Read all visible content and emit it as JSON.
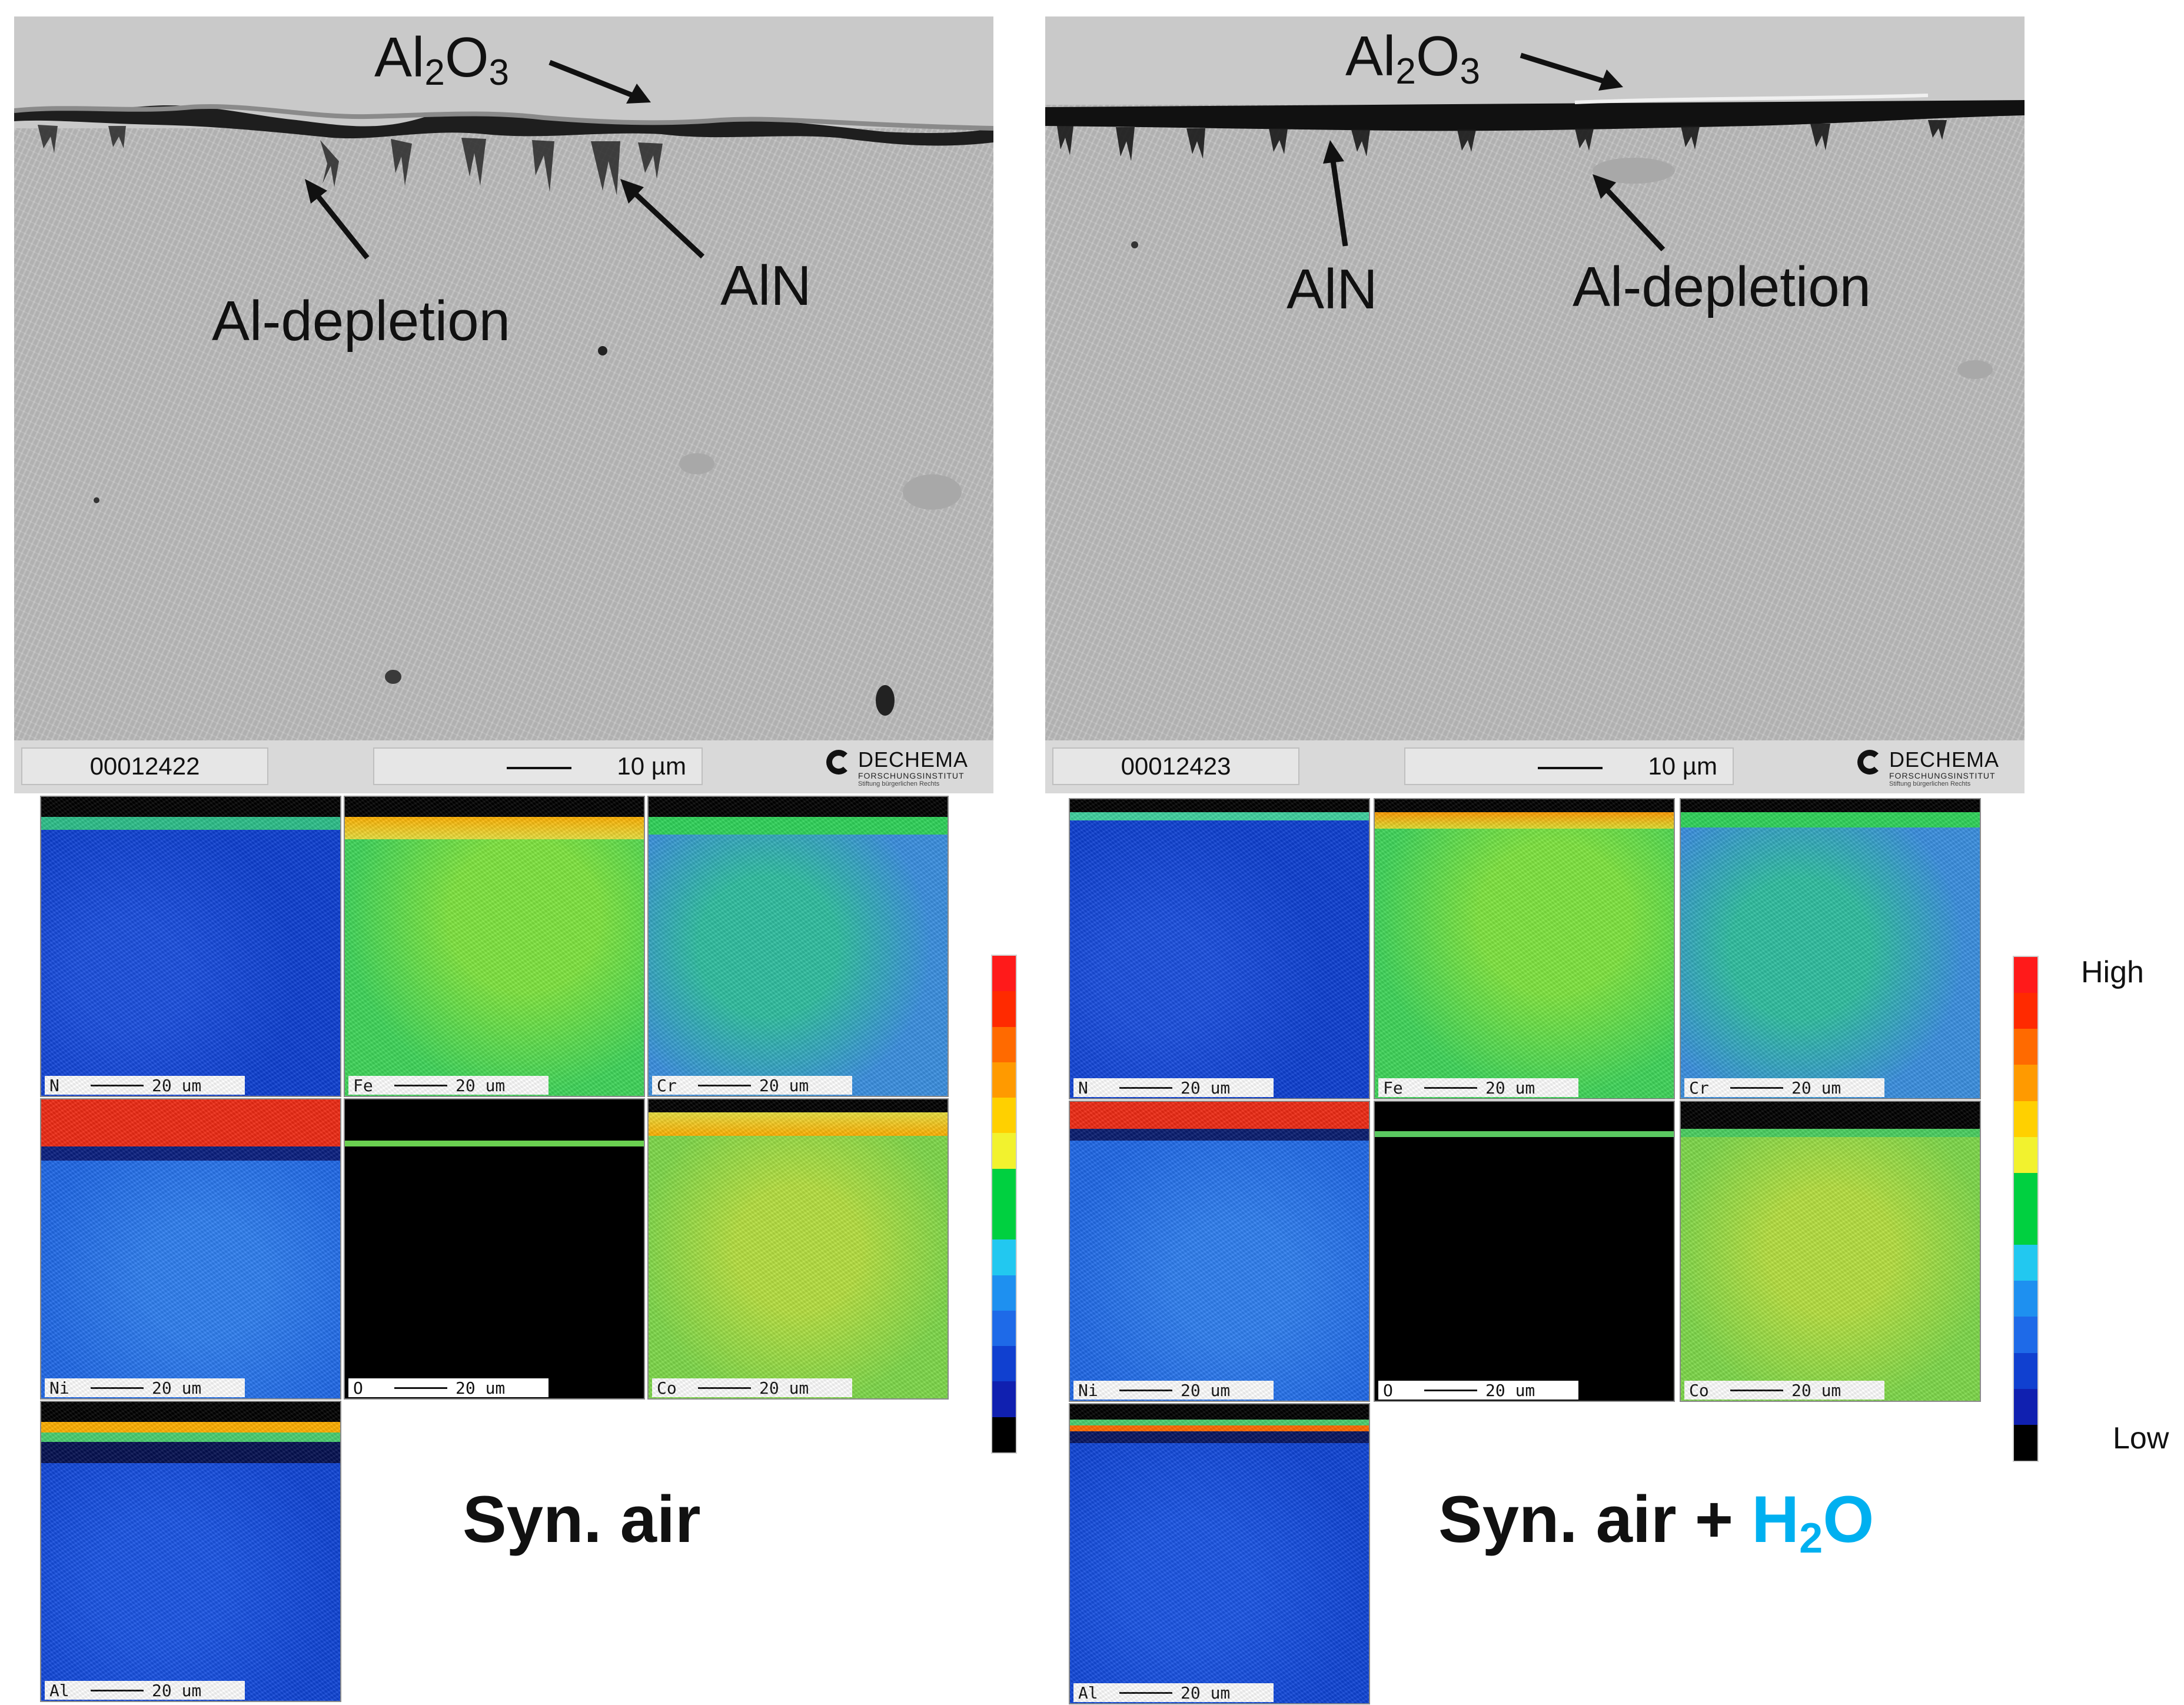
{
  "left_panel": {
    "sem": {
      "image_id": "00012422",
      "scale_label": "10 µm",
      "logo_name": "DECHEMA",
      "logo_sub": "FORSCHUNGSINSTITUT",
      "logo_sub2": "Stiftung bürgerlichen Rechts",
      "annotations": {
        "oxide_base": "Al",
        "oxide_sub1": "2",
        "oxide_mid": "O",
        "oxide_sub2": "3",
        "nitride": "AlN",
        "depletion": "Al-depletion"
      }
    },
    "maps": [
      {
        "element": "N",
        "scale": "20 um"
      },
      {
        "element": "Fe",
        "scale": "20 um"
      },
      {
        "element": "Cr",
        "scale": "20 um"
      },
      {
        "element": "Ni",
        "scale": "20 um"
      },
      {
        "element": "O",
        "scale": "20 um"
      },
      {
        "element": "Co",
        "scale": "20 um"
      },
      {
        "element": "Al",
        "scale": "20 um"
      }
    ],
    "condition": "Syn. air"
  },
  "right_panel": {
    "sem": {
      "image_id": "00012423",
      "scale_label": "10 µm",
      "logo_name": "DECHEMA",
      "logo_sub": "FORSCHUNGSINSTITUT",
      "logo_sub2": "Stiftung bürgerlichen Rechts",
      "annotations": {
        "oxide_base": "Al",
        "oxide_sub1": "2",
        "oxide_mid": "O",
        "oxide_sub2": "3",
        "nitride": "AlN",
        "depletion": "Al-depletion"
      }
    },
    "maps": [
      {
        "element": "N",
        "scale": "20 um"
      },
      {
        "element": "Fe",
        "scale": "20 um"
      },
      {
        "element": "Cr",
        "scale": "20 um"
      },
      {
        "element": "Ni",
        "scale": "20 um"
      },
      {
        "element": "O",
        "scale": "20 um"
      },
      {
        "element": "Co",
        "scale": "20 um"
      },
      {
        "element": "Al",
        "scale": "20 um"
      }
    ],
    "condition_prefix": "Syn. air + ",
    "condition_h2o_h": "H",
    "condition_h2o_sub": "2",
    "condition_h2o_o": "O"
  },
  "colorbar": {
    "high_label": "High",
    "low_label": "Low",
    "colors": [
      "#ff1a1a",
      "#ff2a00",
      "#ff6a00",
      "#ff9a00",
      "#ffd000",
      "#f2f22e",
      "#00d040",
      "#00d040",
      "#22c8f0",
      "#1e90f0",
      "#1e6ae8",
      "#1040d0",
      "#1020b0",
      "#000000"
    ]
  },
  "accent_colors": {
    "h2o": "#00b0f0"
  }
}
